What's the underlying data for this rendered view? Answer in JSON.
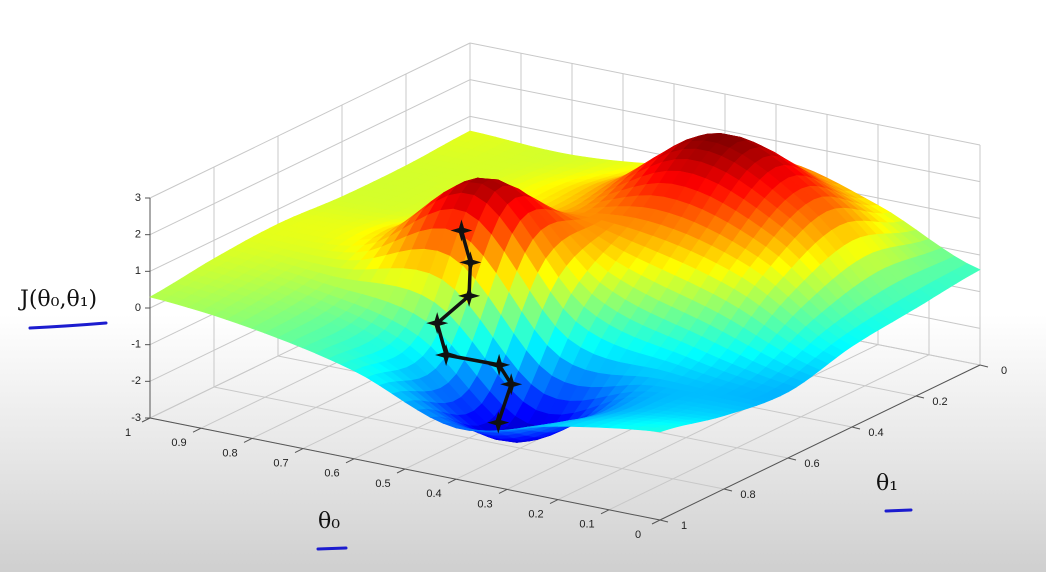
{
  "chart_data": {
    "type": "surface3d",
    "colormap": "jet",
    "grid": true,
    "x_label": "θ₀",
    "y_label": "θ₁",
    "z_label": "J(θ₀,θ₁)",
    "xlim": [
      0,
      1
    ],
    "xticks": [
      0,
      0.1,
      0.2,
      0.3,
      0.4,
      0.5,
      0.6,
      0.7,
      0.8,
      0.9,
      1
    ],
    "ylim": [
      0,
      1
    ],
    "yticks": [
      0,
      0.2,
      0.4,
      0.6,
      0.8,
      1
    ],
    "zlim": [
      -3,
      3
    ],
    "zticks": [
      -3,
      -2,
      -1,
      0,
      1,
      2,
      3
    ],
    "surface": {
      "x": [
        0,
        0.2,
        0.4,
        0.6,
        0.8,
        1
      ],
      "y": [
        0,
        0.2,
        0.4,
        0.6,
        0.8,
        1
      ],
      "z": [
        [
          -0.4,
          0.8,
          1.5,
          0.8,
          0.5,
          0.6
        ],
        [
          -0.6,
          1.8,
          3.0,
          1.2,
          0.6,
          0.5
        ],
        [
          -0.8,
          0.8,
          1.5,
          1.2,
          0.6,
          0.5
        ],
        [
          -1.2,
          -0.8,
          0.0,
          2.8,
          0.9,
          0.6
        ],
        [
          -1.0,
          -1.3,
          -2.6,
          -0.5,
          0.2,
          0.5
        ],
        [
          -0.6,
          -1.0,
          -1.6,
          -0.6,
          0.0,
          0.3
        ]
      ]
    },
    "path": {
      "color": "#111111",
      "x": [
        0.59,
        0.56,
        0.55,
        0.6,
        0.57,
        0.51,
        0.48,
        0.43
      ],
      "y": [
        0.68,
        0.7,
        0.72,
        0.74,
        0.76,
        0.69,
        0.7,
        0.82
      ],
      "z": [
        1.9,
        1.2,
        0.4,
        -0.4,
        -1.1,
        -1.5,
        -1.9,
        -2.3
      ]
    }
  }
}
